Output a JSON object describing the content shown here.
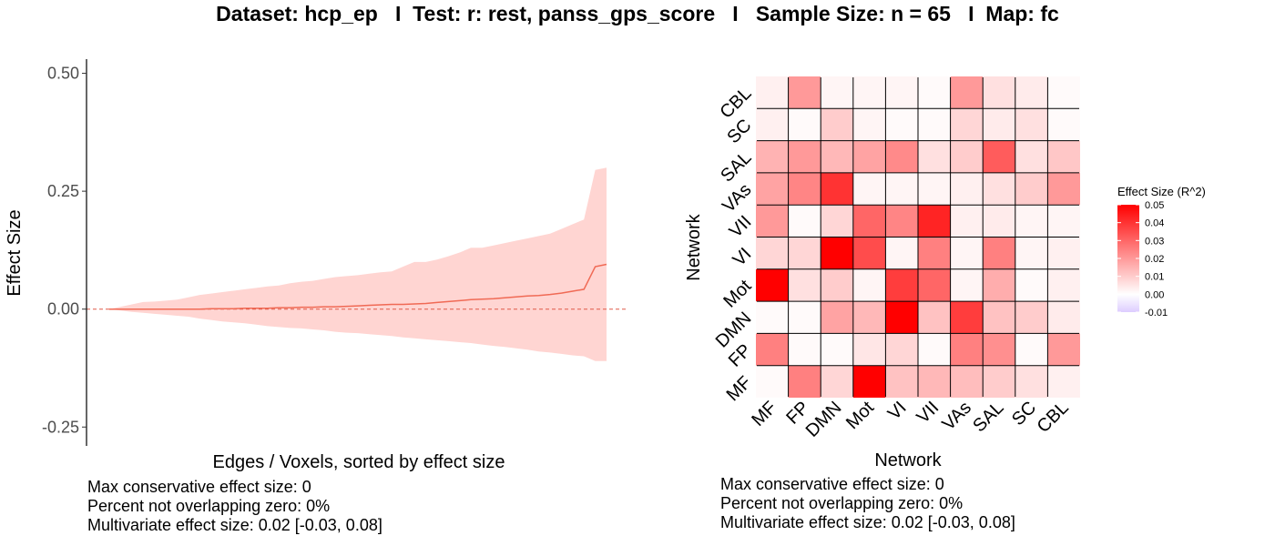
{
  "title": "Dataset: hcp_ep   I  Test: r: rest, panss_gps_score   I   Sample Size: n = 65   I  Map: fc",
  "chart_data": [
    {
      "type": "area",
      "xlabel": "Edges / Voxels, sorted by effect size",
      "ylabel": "Effect Size",
      "ylim": [
        -0.29,
        0.53
      ],
      "yticks": [
        0.5,
        0.25,
        0.0,
        -0.25
      ],
      "yticklabels": [
        "0.50",
        "0.25",
        "0.00",
        "-0.25"
      ],
      "xticks": [],
      "reference_line": 0,
      "grid": false,
      "x": [
        0,
        1,
        2,
        3,
        4,
        5,
        6,
        7,
        8,
        9,
        10,
        11,
        12,
        13,
        14,
        15,
        16,
        17,
        18,
        19,
        20,
        21,
        22,
        23,
        24,
        25,
        26,
        27,
        28,
        29,
        30,
        31,
        32,
        33,
        34,
        35,
        36,
        37,
        38,
        39,
        40,
        41,
        42,
        43,
        44
      ],
      "series": [
        {
          "values": [
            0.0,
            0.0,
            0.0,
            0.0,
            0.0,
            0.0,
            0.0,
            0.0,
            0.0,
            0.001,
            0.001,
            0.001,
            0.002,
            0.002,
            0.002,
            0.003,
            0.003,
            0.004,
            0.004,
            0.005,
            0.005,
            0.006,
            0.007,
            0.008,
            0.009,
            0.01,
            0.01,
            0.011,
            0.012,
            0.014,
            0.016,
            0.018,
            0.02,
            0.021,
            0.022,
            0.024,
            0.026,
            0.028,
            0.029,
            0.031,
            0.034,
            0.038,
            0.042,
            0.09,
            0.095
          ],
          "upper": [
            0.0,
            0.005,
            0.01,
            0.015,
            0.016,
            0.018,
            0.02,
            0.025,
            0.03,
            0.033,
            0.036,
            0.039,
            0.042,
            0.045,
            0.048,
            0.05,
            0.055,
            0.058,
            0.06,
            0.064,
            0.068,
            0.07,
            0.072,
            0.075,
            0.078,
            0.08,
            0.09,
            0.1,
            0.1,
            0.105,
            0.112,
            0.12,
            0.13,
            0.13,
            0.135,
            0.14,
            0.145,
            0.15,
            0.155,
            0.16,
            0.17,
            0.18,
            0.19,
            0.295,
            0.3
          ],
          "lower": [
            0.0,
            -0.003,
            -0.006,
            -0.008,
            -0.01,
            -0.012,
            -0.014,
            -0.016,
            -0.02,
            -0.023,
            -0.026,
            -0.028,
            -0.03,
            -0.033,
            -0.036,
            -0.038,
            -0.04,
            -0.041,
            -0.043,
            -0.045,
            -0.048,
            -0.05,
            -0.051,
            -0.053,
            -0.055,
            -0.057,
            -0.06,
            -0.062,
            -0.064,
            -0.066,
            -0.068,
            -0.07,
            -0.072,
            -0.075,
            -0.078,
            -0.08,
            -0.083,
            -0.086,
            -0.09,
            -0.092,
            -0.095,
            -0.098,
            -0.1,
            -0.11,
            -0.11
          ]
        }
      ],
      "colors": {
        "line": "#f06a55",
        "band": "#ffd5d2",
        "reference": "#e05a48"
      },
      "stats": [
        "Max conservative effect size: 0",
        "Percent not overlapping zero: 0%",
        "Multivariate effect size: 0.02 [-0.03, 0.08]"
      ]
    },
    {
      "type": "heatmap",
      "xlabel": "Network",
      "ylabel": "Network",
      "categories": [
        "MF",
        "FP",
        "DMN",
        "Mot",
        "VI",
        "VII",
        "VAs",
        "SAL",
        "SC",
        "CBL"
      ],
      "values": [
        [
          0.001,
          0.025,
          0.008,
          0.05,
          0.012,
          0.014,
          0.013,
          0.01,
          0.006,
          0.003
        ],
        [
          0.025,
          0.001,
          0.001,
          0.005,
          0.008,
          0.001,
          0.025,
          0.022,
          0.001,
          0.02
        ],
        [
          0.001,
          0.001,
          0.018,
          0.014,
          0.05,
          0.012,
          0.038,
          0.012,
          0.01,
          0.004
        ],
        [
          0.05,
          0.006,
          0.01,
          0.002,
          0.038,
          0.03,
          0.002,
          0.016,
          0.001,
          0.003
        ],
        [
          0.008,
          0.008,
          0.05,
          0.035,
          0.002,
          0.025,
          0.002,
          0.025,
          0.002,
          0.003
        ],
        [
          0.02,
          0.001,
          0.008,
          0.03,
          0.024,
          0.043,
          0.003,
          0.004,
          0.002,
          0.002
        ],
        [
          0.018,
          0.024,
          0.04,
          0.002,
          0.002,
          0.002,
          0.003,
          0.006,
          0.01,
          0.02
        ],
        [
          0.015,
          0.02,
          0.014,
          0.018,
          0.023,
          0.006,
          0.01,
          0.032,
          0.006,
          0.011
        ],
        [
          0.003,
          0.001,
          0.01,
          0.002,
          0.001,
          0.001,
          0.008,
          0.004,
          0.006,
          0.001
        ],
        [
          0.003,
          0.02,
          0.002,
          0.002,
          0.002,
          0.001,
          0.02,
          0.006,
          0.004,
          0.001
        ]
      ],
      "legend_title": "Effect Size (R^2)",
      "legend_ticks": [
        0.05,
        0.04,
        0.03,
        0.02,
        0.01,
        0.0,
        -0.01
      ],
      "legend_ticklabels": [
        "0.05",
        "0.04",
        "0.03",
        "0.02",
        "0.01",
        "0.00",
        "-0.01"
      ],
      "legend_range": [
        -0.01,
        0.05
      ],
      "legend_placement": "right",
      "colors": {
        "high": "#ff0000",
        "mid": "#ffffff",
        "low": "#ddccff",
        "border": "#000000"
      },
      "stats": [
        "Max conservative effect size: 0",
        "Percent not overlapping zero: 0%",
        "Multivariate effect size: 0.02 [-0.03, 0.08]"
      ]
    }
  ]
}
